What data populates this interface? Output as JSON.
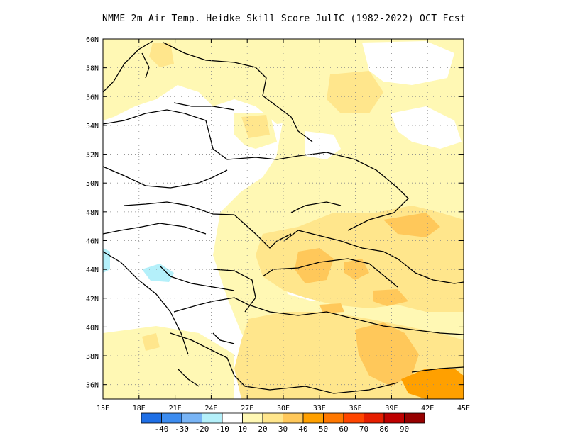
{
  "title": "NMME  2m Air Temp. Heidke Skill Score JulIC (1982-2022) OCT Fcst",
  "map": {
    "lon_range": [
      15,
      45
    ],
    "lat_range": [
      35,
      60
    ],
    "lon_ticks": [
      15,
      18,
      21,
      24,
      27,
      30,
      33,
      36,
      39,
      42,
      45
    ],
    "lon_tick_labels": [
      "15E",
      "18E",
      "21E",
      "24E",
      "27E",
      "30E",
      "33E",
      "36E",
      "39E",
      "42E",
      "45E"
    ],
    "lat_ticks": [
      36,
      38,
      40,
      42,
      44,
      46,
      48,
      50,
      52,
      54,
      56,
      58,
      60
    ],
    "lat_tick_labels": [
      "36N",
      "38N",
      "40N",
      "42N",
      "44N",
      "46N",
      "48N",
      "50N",
      "52N",
      "54N",
      "56N",
      "58N",
      "60N"
    ],
    "grid": "dotted"
  },
  "colorbar": {
    "colors": [
      "#1e6fe6",
      "#3c8cf0",
      "#78b4f5",
      "#b4f0fa",
      "#ffffff",
      "#fff8b4",
      "#ffe68c",
      "#ffc85a",
      "#ffa000",
      "#ff7800",
      "#ff4600",
      "#e61e00",
      "#be0000",
      "#960000"
    ],
    "labels": [
      "-40",
      "-30",
      "-20",
      "-10",
      "10",
      "20",
      "30",
      "40",
      "50",
      "60",
      "70",
      "80",
      "90"
    ]
  }
}
